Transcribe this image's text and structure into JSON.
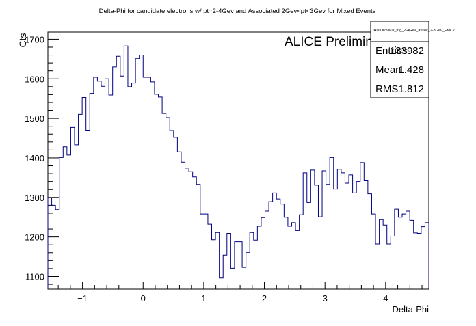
{
  "chart_data": {
    "type": "histogram",
    "title": "Delta-Phi for candidate electrons w/ pt=2-4Gev and Associated 2Gev<pt<3Gev for Mixed Events",
    "xlabel": "Delta-Phi",
    "ylabel": "Cts",
    "annotation": "ALICE Preliminary",
    "xlim": [
      -1.5708,
      4.7124
    ],
    "ylim": [
      1068,
      1718
    ],
    "x_ticks": [
      -1,
      0,
      1,
      2,
      3,
      4
    ],
    "x_tick_labels": [
      "−1",
      "0",
      "1",
      "2",
      "3",
      "4"
    ],
    "y_ticks": [
      1100,
      1200,
      1300,
      1400,
      1500,
      1600,
      1700
    ],
    "y_tick_labels": [
      "1100",
      "1200",
      "1300",
      "1400",
      "1500",
      "1600",
      "1700"
    ],
    "line_color": "#000080",
    "grid": false,
    "stats_box": {
      "name": "fHistDPhiMix_trig_2-4Gev_assoc_2-3Gev_EMC7",
      "entries_label": "Entries",
      "entries_value": "133982",
      "mean_label": "Mean",
      "mean_value": "1.428",
      "rms_label": "RMS",
      "rms_value": "1.812"
    },
    "bins": 100,
    "values": [
      1299,
      1280,
      1269,
      1401,
      1428,
      1407,
      1477,
      1433,
      1510,
      1553,
      1470,
      1563,
      1604,
      1594,
      1581,
      1600,
      1559,
      1630,
      1657,
      1607,
      1683,
      1580,
      1589,
      1651,
      1660,
      1604,
      1604,
      1592,
      1561,
      1554,
      1512,
      1502,
      1469,
      1452,
      1415,
      1389,
      1372,
      1365,
      1352,
      1333,
      1258,
      1258,
      1232,
      1193,
      1211,
      1096,
      1154,
      1209,
      1121,
      1188,
      1188,
      1123,
      1161,
      1211,
      1192,
      1227,
      1249,
      1265,
      1289,
      1311,
      1296,
      1283,
      1250,
      1227,
      1236,
      1216,
      1256,
      1362,
      1287,
      1369,
      1331,
      1251,
      1367,
      1333,
      1401,
      1321,
      1371,
      1362,
      1336,
      1357,
      1311,
      1340,
      1388,
      1342,
      1309,
      1258,
      1182,
      1244,
      1230,
      1182,
      1202,
      1270,
      1250,
      1258,
      1265,
      1242,
      1210,
      1209,
      1226,
      1236
    ]
  }
}
